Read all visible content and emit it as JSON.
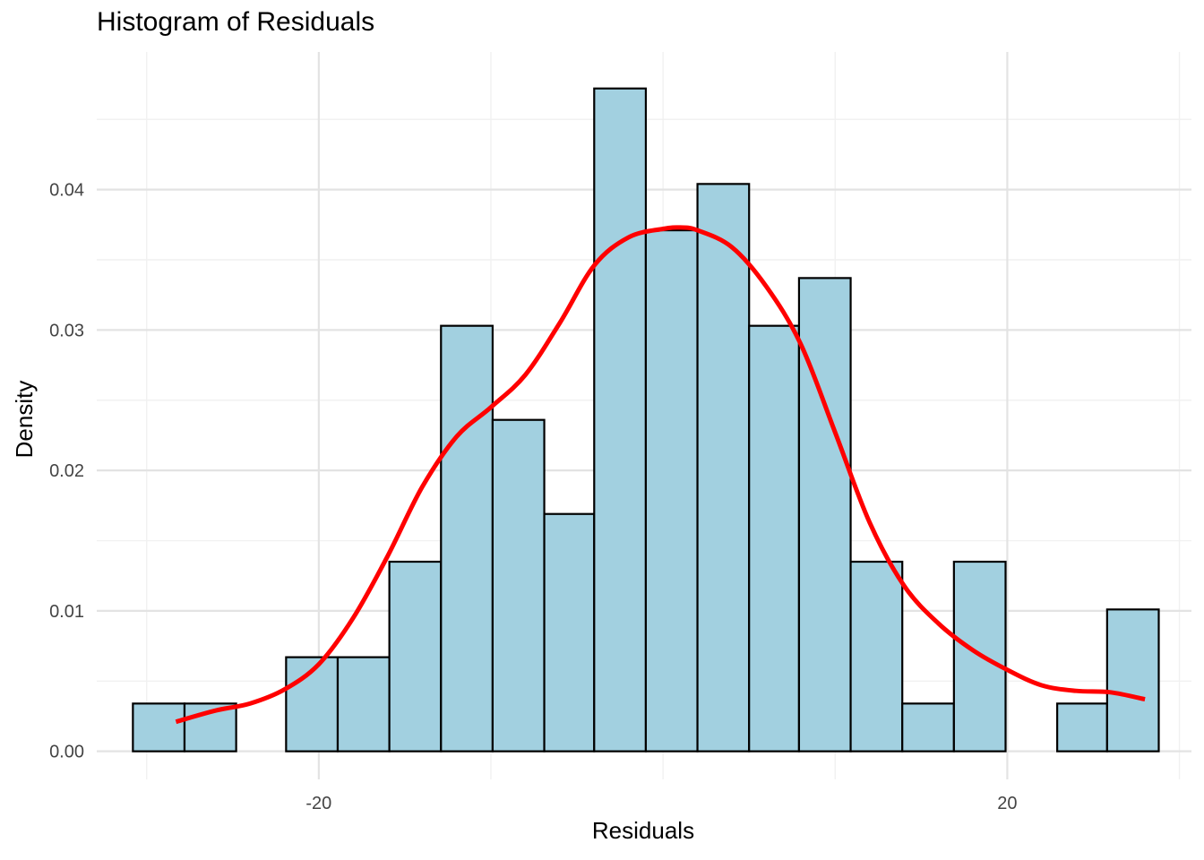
{
  "chart_data": {
    "type": "bar",
    "title": "Histogram of Residuals",
    "xlabel": "Residuals",
    "ylabel": "Density",
    "xlim": [
      -32.9,
      30.7
    ],
    "ylim": [
      -0.002,
      0.0498
    ],
    "x_ticks": [
      -20,
      20
    ],
    "x_tick_labels": [
      "-20",
      "20"
    ],
    "x_minor_gridlines": [
      -30,
      -10,
      0,
      10,
      30
    ],
    "y_ticks": [
      0.0,
      0.01,
      0.02,
      0.03,
      0.04
    ],
    "y_tick_labels": [
      "0.00",
      "0.01",
      "0.02",
      "0.03",
      "0.04"
    ],
    "y_minor_gridlines": [
      0.005,
      0.015,
      0.025,
      0.035,
      0.045
    ],
    "grid": true,
    "bins": [
      {
        "x0": -30.8,
        "x1": -27.8,
        "density": 0.0034
      },
      {
        "x0": -27.8,
        "x1": -24.8,
        "density": 0.0034
      },
      {
        "x0": -24.8,
        "x1": -21.9,
        "density": 0.0
      },
      {
        "x0": -21.9,
        "x1": -18.9,
        "density": 0.0067
      },
      {
        "x0": -18.9,
        "x1": -15.9,
        "density": 0.0067
      },
      {
        "x0": -15.9,
        "x1": -12.9,
        "density": 0.0135
      },
      {
        "x0": -12.9,
        "x1": -9.9,
        "density": 0.0303
      },
      {
        "x0": -9.9,
        "x1": -6.9,
        "density": 0.0236
      },
      {
        "x0": -6.9,
        "x1": -4.0,
        "density": 0.0169
      },
      {
        "x0": -4.0,
        "x1": -1.0,
        "density": 0.0472
      },
      {
        "x0": -1.0,
        "x1": 2.0,
        "density": 0.0371
      },
      {
        "x0": 2.0,
        "x1": 5.0,
        "density": 0.0404
      },
      {
        "x0": 5.0,
        "x1": 7.9,
        "density": 0.0303
      },
      {
        "x0": 7.9,
        "x1": 10.9,
        "density": 0.0337
      },
      {
        "x0": 10.9,
        "x1": 13.9,
        "density": 0.0135
      },
      {
        "x0": 13.9,
        "x1": 16.9,
        "density": 0.0034
      },
      {
        "x0": 16.9,
        "x1": 19.9,
        "density": 0.0135
      },
      {
        "x0": 19.9,
        "x1": 22.9,
        "density": 0.0
      },
      {
        "x0": 22.9,
        "x1": 25.8,
        "density": 0.0034
      },
      {
        "x0": 25.8,
        "x1": 28.8,
        "density": 0.0101
      }
    ],
    "density_curve": {
      "x": [
        -28.3,
        -26,
        -24,
        -22,
        -20,
        -18,
        -16,
        -14,
        -12,
        -10,
        -8,
        -6,
        -4,
        -2,
        0,
        1,
        2,
        4,
        6,
        8,
        10,
        12,
        14,
        16,
        18,
        20,
        22,
        24,
        26,
        28
      ],
      "y": [
        0.0021,
        0.0029,
        0.0034,
        0.0044,
        0.0062,
        0.0095,
        0.0139,
        0.0188,
        0.0224,
        0.0245,
        0.0268,
        0.0305,
        0.0346,
        0.0366,
        0.0372,
        0.0373,
        0.0371,
        0.0359,
        0.0331,
        0.029,
        0.0227,
        0.0163,
        0.0118,
        0.0091,
        0.0072,
        0.0058,
        0.0047,
        0.0043,
        0.0042,
        0.0037
      ]
    },
    "colors": {
      "bar_fill": "#a2d0e0",
      "bar_stroke": "#000000",
      "curve": "#ff0000",
      "grid_major": "#e3e3e3",
      "grid_minor": "#f1f1f1",
      "tick_text": "#444444"
    }
  }
}
